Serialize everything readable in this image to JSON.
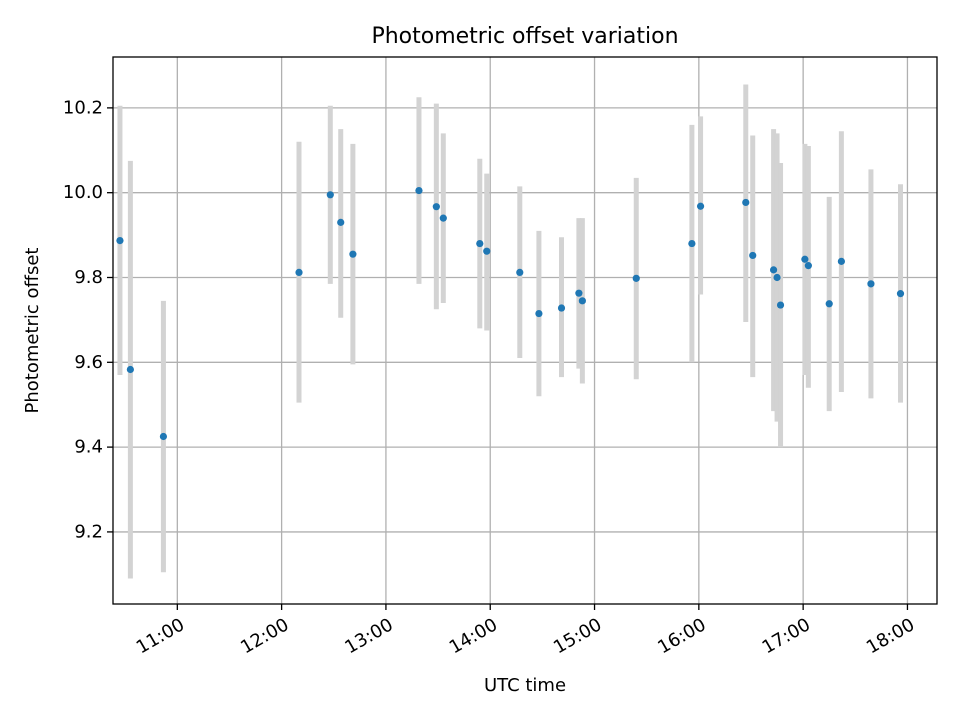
{
  "chart_data": {
    "type": "scatter",
    "title": "Photometric offset variation",
    "xlabel": "UTC time",
    "ylabel": "Photometric offset",
    "x_ticks": [
      "11:00",
      "12:00",
      "13:00",
      "14:00",
      "15:00",
      "16:00",
      "17:00",
      "18:00"
    ],
    "y_ticks": [
      "9.2",
      "9.4",
      "9.6",
      "9.8",
      "10.0",
      "10.2"
    ],
    "xlim": [
      "10:23",
      "18:17"
    ],
    "ylim": [
      9.03,
      10.32
    ],
    "grid": true,
    "legend": "none",
    "marker_color": "#1f77b4",
    "errorbar_color": "#d3d3d3",
    "points": [
      {
        "t": "10:27",
        "y": 9.887,
        "lo": 9.57,
        "hi": 10.205
      },
      {
        "t": "10:33",
        "y": 9.583,
        "lo": 9.09,
        "hi": 10.075
      },
      {
        "t": "10:52",
        "y": 9.425,
        "lo": 9.105,
        "hi": 9.745
      },
      {
        "t": "12:10",
        "y": 9.812,
        "lo": 9.505,
        "hi": 10.12
      },
      {
        "t": "12:28",
        "y": 9.995,
        "lo": 9.785,
        "hi": 10.205
      },
      {
        "t": "12:34",
        "y": 9.93,
        "lo": 9.705,
        "hi": 10.15
      },
      {
        "t": "12:41",
        "y": 9.855,
        "lo": 9.595,
        "hi": 10.115
      },
      {
        "t": "13:19",
        "y": 10.005,
        "lo": 9.785,
        "hi": 10.225
      },
      {
        "t": "13:29",
        "y": 9.967,
        "lo": 9.725,
        "hi": 10.21
      },
      {
        "t": "13:33",
        "y": 9.94,
        "lo": 9.74,
        "hi": 10.14
      },
      {
        "t": "13:54",
        "y": 9.88,
        "lo": 9.68,
        "hi": 10.08
      },
      {
        "t": "13:58",
        "y": 9.862,
        "lo": 9.675,
        "hi": 10.045
      },
      {
        "t": "14:17",
        "y": 9.812,
        "lo": 9.61,
        "hi": 10.015
      },
      {
        "t": "14:28",
        "y": 9.715,
        "lo": 9.52,
        "hi": 9.91
      },
      {
        "t": "14:41",
        "y": 9.728,
        "lo": 9.565,
        "hi": 9.895
      },
      {
        "t": "14:51",
        "y": 9.763,
        "lo": 9.585,
        "hi": 9.94
      },
      {
        "t": "14:53",
        "y": 9.745,
        "lo": 9.55,
        "hi": 9.94
      },
      {
        "t": "15:24",
        "y": 9.798,
        "lo": 9.56,
        "hi": 10.035
      },
      {
        "t": "15:56",
        "y": 9.88,
        "lo": 9.6,
        "hi": 10.16
      },
      {
        "t": "16:01",
        "y": 9.968,
        "lo": 9.76,
        "hi": 10.18
      },
      {
        "t": "16:27",
        "y": 9.977,
        "lo": 9.695,
        "hi": 10.255
      },
      {
        "t": "16:31",
        "y": 9.852,
        "lo": 9.565,
        "hi": 10.135
      },
      {
        "t": "16:43",
        "y": 9.818,
        "lo": 9.485,
        "hi": 10.15
      },
      {
        "t": "16:45",
        "y": 9.8,
        "lo": 9.46,
        "hi": 10.14
      },
      {
        "t": "16:47",
        "y": 9.735,
        "lo": 9.4,
        "hi": 10.07
      },
      {
        "t": "17:01",
        "y": 9.843,
        "lo": 9.57,
        "hi": 10.115
      },
      {
        "t": "17:03",
        "y": 9.828,
        "lo": 9.54,
        "hi": 10.11
      },
      {
        "t": "17:15",
        "y": 9.738,
        "lo": 9.485,
        "hi": 9.99
      },
      {
        "t": "17:22",
        "y": 9.838,
        "lo": 9.53,
        "hi": 10.145
      },
      {
        "t": "17:39",
        "y": 9.785,
        "lo": 9.515,
        "hi": 10.055
      },
      {
        "t": "17:56",
        "y": 9.762,
        "lo": 9.505,
        "hi": 10.02
      }
    ]
  }
}
